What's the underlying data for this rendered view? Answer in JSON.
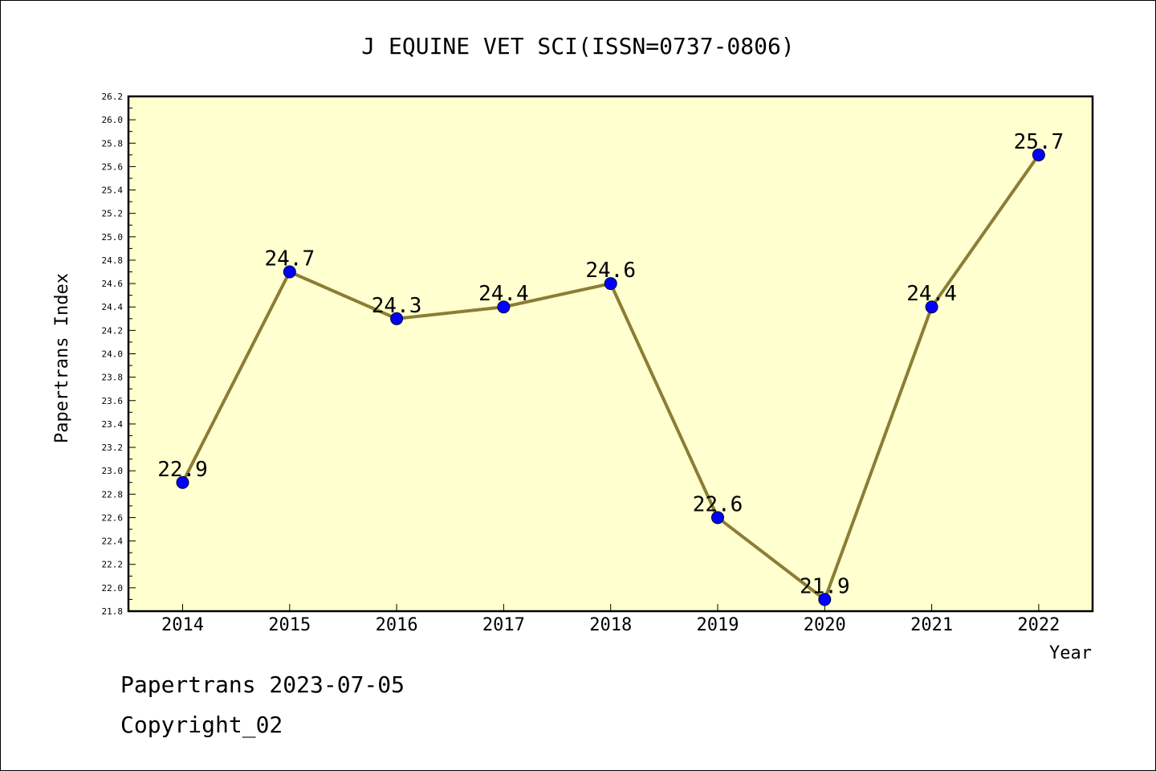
{
  "chart_data": {
    "type": "line",
    "title": "J EQUINE VET SCI(ISSN=0737-0806)",
    "xlabel": "Year",
    "ylabel": "Papertrans Index",
    "categories": [
      "2014",
      "2015",
      "2016",
      "2017",
      "2018",
      "2019",
      "2020",
      "2021",
      "2022"
    ],
    "series": [
      {
        "values": [
          22.9,
          24.7,
          24.3,
          24.4,
          24.6,
          22.6,
          21.9,
          24.4,
          25.7
        ]
      }
    ],
    "data_labels": [
      "22.9",
      "24.7",
      "24.3",
      "24.4",
      "24.6",
      "22.6",
      "21.9",
      "24.4",
      "25.7"
    ],
    "ylim": [
      21.8,
      26.2
    ],
    "yticks": [
      "21.8",
      "22.0",
      "22.2",
      "22.4",
      "22.6",
      "22.8",
      "23.0",
      "23.2",
      "23.4",
      "23.6",
      "23.8",
      "24.0",
      "24.2",
      "24.4",
      "24.6",
      "24.8",
      "25.0",
      "25.2",
      "25.4",
      "25.6",
      "25.8",
      "26.0",
      "26.2"
    ],
    "grid": false,
    "colors": {
      "plot_background": "#ffffd0",
      "line": "#8b7d35",
      "marker": "#0000ff"
    }
  },
  "footer": {
    "line1": "Papertrans 2023-07-05",
    "line2": "Copyright_02"
  }
}
